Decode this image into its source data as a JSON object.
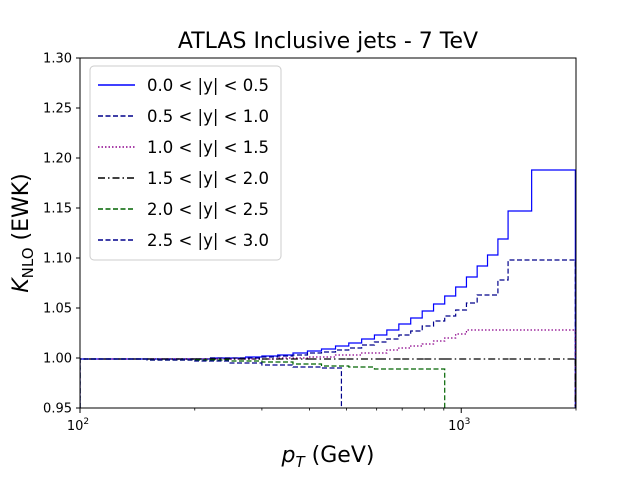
{
  "chart_data": {
    "type": "line",
    "step": true,
    "title": "ATLAS Inclusive jets - 7 TeV",
    "xlabel": "p_T (GeV)",
    "ylabel": "K_NLO (EWK)",
    "xscale": "log",
    "xlim": [
      100,
      2000
    ],
    "ylim": [
      0.95,
      1.3
    ],
    "xticks": [
      {
        "value": 100,
        "label": "10^2"
      },
      {
        "value": 1000,
        "label": "10^3"
      }
    ],
    "yticks": [
      0.95,
      1.0,
      1.05,
      1.1,
      1.15,
      1.2,
      1.25,
      1.3
    ],
    "ytick_labels": [
      "0.95",
      "1.00",
      "1.05",
      "1.10",
      "1.15",
      "1.20",
      "1.25",
      "1.30"
    ],
    "legend_position": "upper-left",
    "series": [
      {
        "name": "0.0 < |y| < 0.5",
        "color": "#0000ff",
        "style": "solid",
        "x": [
          100,
          116,
          134,
          152,
          172,
          196,
          220,
          245,
          272,
          300,
          330,
          362,
          395,
          430,
          468,
          507,
          548,
          592,
          638,
          686,
          737,
          790,
          846,
          905,
          967,
          1032,
          1101,
          1172,
          1248,
          1327,
          1530,
          1992
        ],
        "y": [
          0.999,
          0.999,
          0.999,
          0.999,
          0.999,
          0.999,
          1.0,
          1.0,
          1.001,
          1.002,
          1.003,
          1.005,
          1.007,
          1.009,
          1.012,
          1.015,
          1.019,
          1.023,
          1.028,
          1.034,
          1.04,
          1.047,
          1.054,
          1.062,
          1.071,
          1.081,
          1.092,
          1.103,
          1.119,
          1.147,
          1.188,
          1.188
        ]
      },
      {
        "name": "0.5 < |y| < 1.0",
        "color": "#00008b",
        "style": "dashed",
        "x": [
          100,
          116,
          134,
          152,
          172,
          196,
          220,
          245,
          272,
          300,
          330,
          362,
          395,
          430,
          468,
          507,
          548,
          592,
          638,
          686,
          737,
          790,
          846,
          905,
          967,
          1032,
          1101,
          1172,
          1248,
          1327,
          1530,
          1992
        ],
        "y": [
          0.999,
          0.999,
          0.999,
          0.999,
          0.999,
          0.999,
          1.0,
          1.0,
          1.0,
          1.001,
          1.002,
          1.003,
          1.005,
          1.006,
          1.008,
          1.01,
          1.013,
          1.016,
          1.019,
          1.023,
          1.027,
          1.032,
          1.037,
          1.042,
          1.048,
          1.055,
          1.063,
          1.063,
          1.078,
          1.098,
          1.098,
          1.098
        ]
      },
      {
        "name": "1.0 < |y| < 1.5",
        "color": "#8b008b",
        "style": "dotted",
        "x": [
          100,
          150,
          200,
          260,
          330,
          395,
          468,
          548,
          638,
          686,
          737,
          790,
          846,
          905,
          967,
          1032,
          1992
        ],
        "y": [
          0.999,
          0.999,
          0.999,
          0.999,
          1.0,
          1.001,
          1.003,
          1.005,
          1.008,
          1.01,
          1.012,
          1.014,
          1.017,
          1.02,
          1.024,
          1.028,
          1.028
        ]
      },
      {
        "name": "1.5 < |y| < 2.0",
        "color": "#000000",
        "style": "dashdot",
        "x": [
          100,
          200,
          300,
          400,
          500,
          600,
          700,
          800,
          905,
          1992
        ],
        "y": [
          0.999,
          0.999,
          0.999,
          0.999,
          0.999,
          0.999,
          0.999,
          0.999,
          0.999,
          0.999
        ]
      },
      {
        "name": "2.0 < |y| < 2.5",
        "color": "#006400",
        "style": "dashed",
        "x": [
          100,
          150,
          200,
          245,
          300,
          362,
          430,
          507,
          592,
          686,
          790,
          905
        ],
        "y": [
          0.999,
          0.998,
          0.998,
          0.997,
          0.996,
          0.994,
          0.992,
          0.991,
          0.989,
          0.989,
          0.989,
          0.989
        ],
        "drop_to_bottom": true
      },
      {
        "name": "2.5 < |y| < 3.0",
        "color": "#00008b",
        "style": "dashed",
        "x": [
          100,
          150,
          200,
          245,
          300,
          362,
          430,
          485
        ],
        "y": [
          0.999,
          0.998,
          0.997,
          0.995,
          0.993,
          0.991,
          0.99,
          0.99
        ],
        "drop_to_bottom": true
      }
    ]
  }
}
